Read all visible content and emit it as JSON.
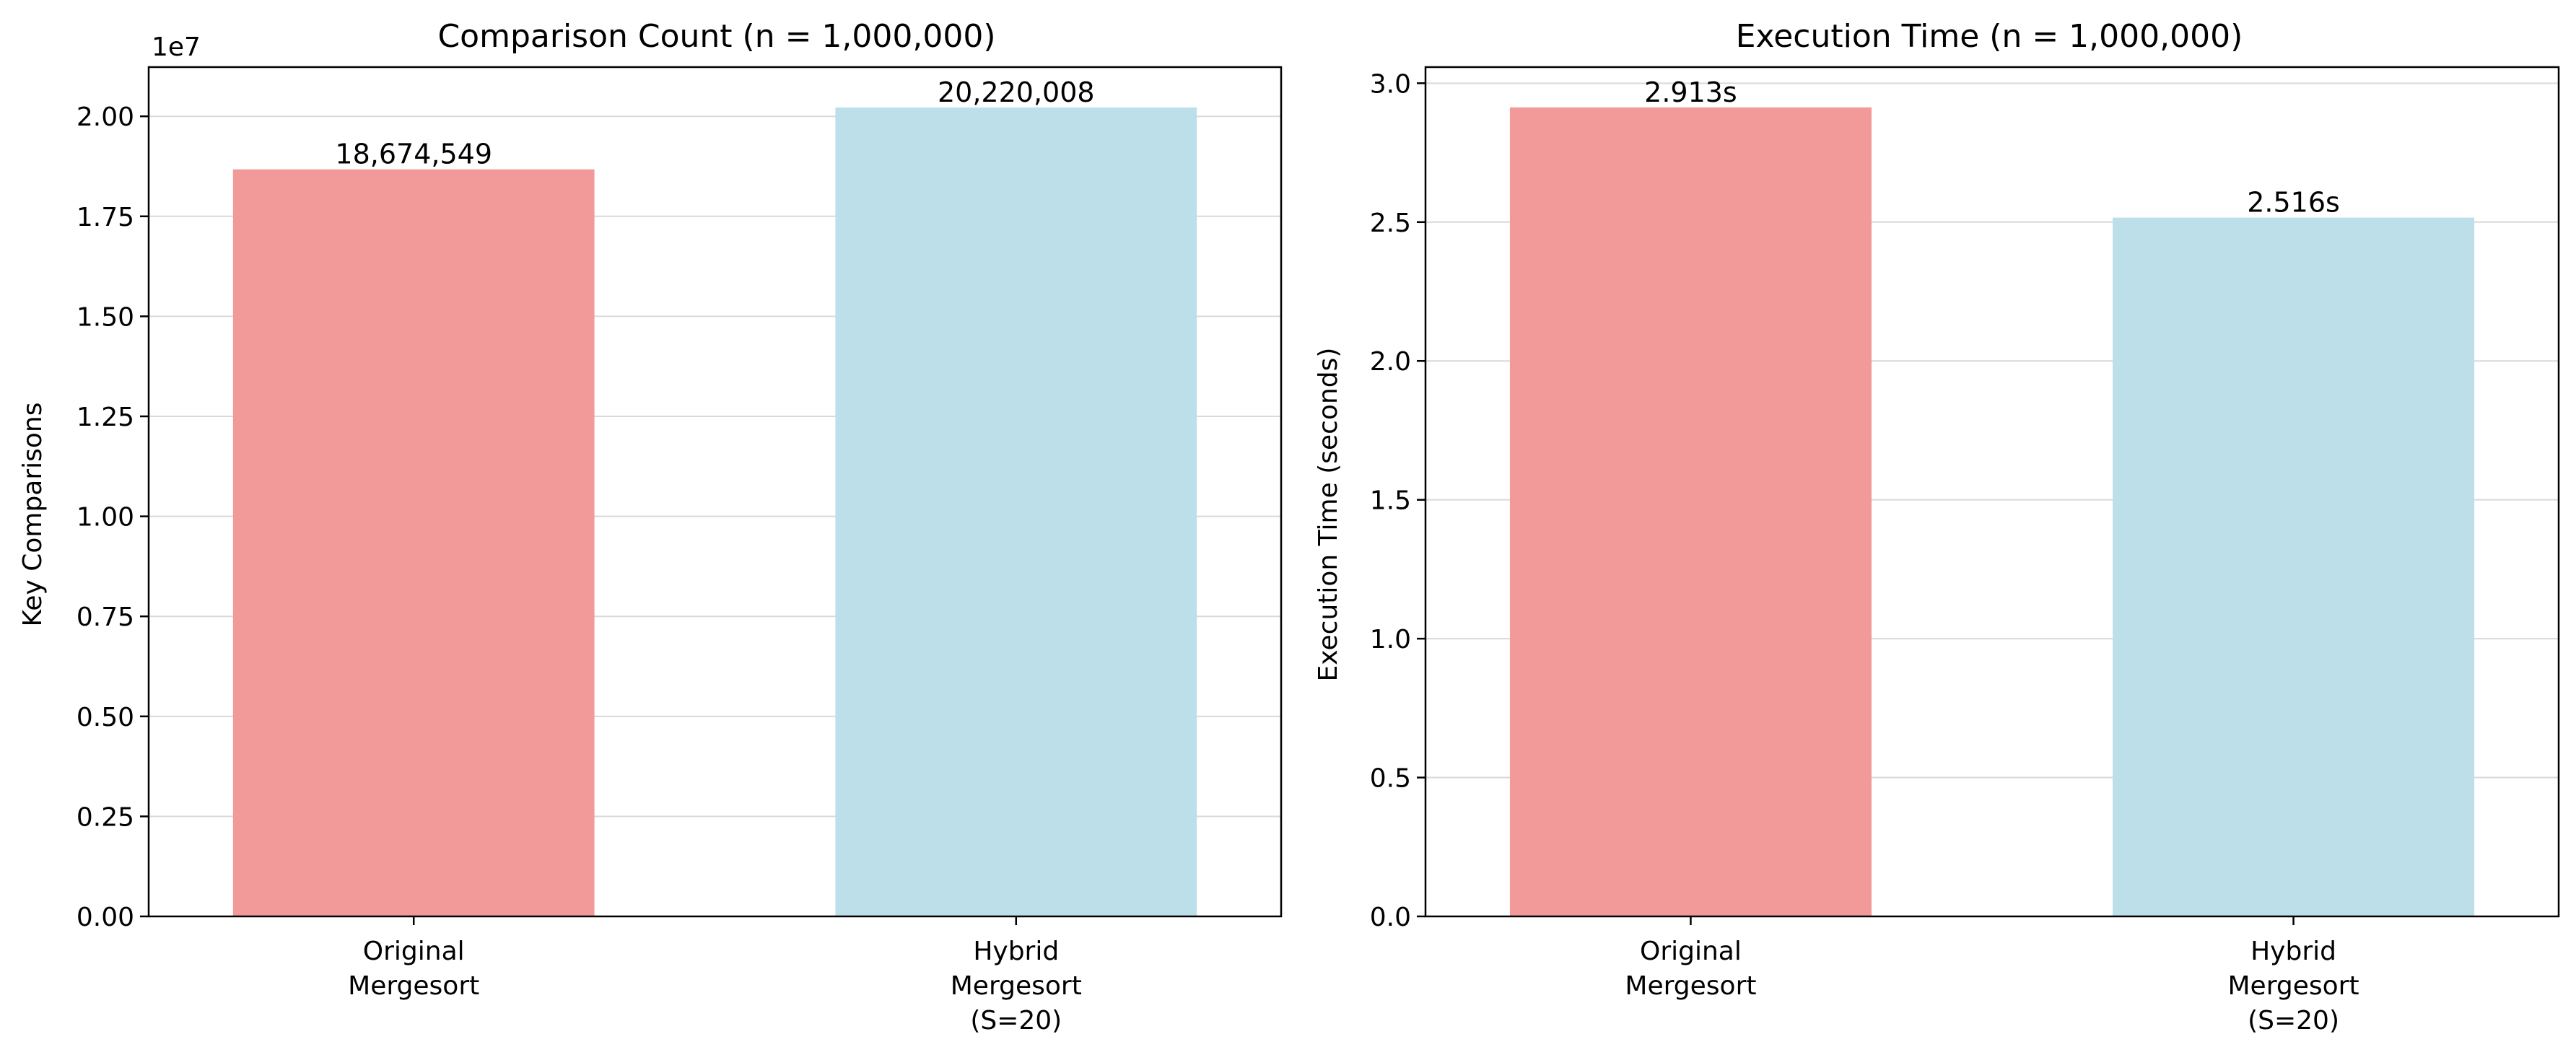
{
  "chart_data": [
    {
      "type": "bar",
      "title": "Comparison Count (n = 1,000,000)",
      "xlabel": "",
      "ylabel": "Key Comparisons",
      "offset_label": "1e7",
      "categories": [
        [
          "Original",
          "Mergesort"
        ],
        [
          "Hybrid",
          "Mergesort",
          "(S=20)"
        ]
      ],
      "values": [
        18674549,
        20220008
      ],
      "value_labels": [
        "18,674,549",
        "20,220,008"
      ],
      "colors": [
        "#f29a9a",
        "#bddfea"
      ],
      "ylim": [
        0,
        21230000
      ],
      "yticks": [
        0,
        2500000,
        5000000,
        7500000,
        10000000,
        12500000,
        15000000,
        17500000,
        20000000
      ],
      "ytick_labels": [
        "0.00",
        "0.25",
        "0.50",
        "0.75",
        "1.00",
        "1.25",
        "1.50",
        "1.75",
        "2.00"
      ],
      "grid": true
    },
    {
      "type": "bar",
      "title": "Execution Time (n = 1,000,000)",
      "xlabel": "",
      "ylabel": "Execution Time (seconds)",
      "offset_label": "",
      "categories": [
        [
          "Original",
          "Mergesort"
        ],
        [
          "Hybrid",
          "Mergesort",
          "(S=20)"
        ]
      ],
      "values": [
        2.913,
        2.516
      ],
      "value_labels": [
        "2.913s",
        "2.516s"
      ],
      "colors": [
        "#f29a9a",
        "#bddfea"
      ],
      "ylim": [
        0,
        3.058
      ],
      "yticks": [
        0,
        0.5,
        1.0,
        1.5,
        2.0,
        2.5,
        3.0
      ],
      "ytick_labels": [
        "0.0",
        "0.5",
        "1.0",
        "1.5",
        "2.0",
        "2.5",
        "3.0"
      ],
      "grid": true
    }
  ]
}
